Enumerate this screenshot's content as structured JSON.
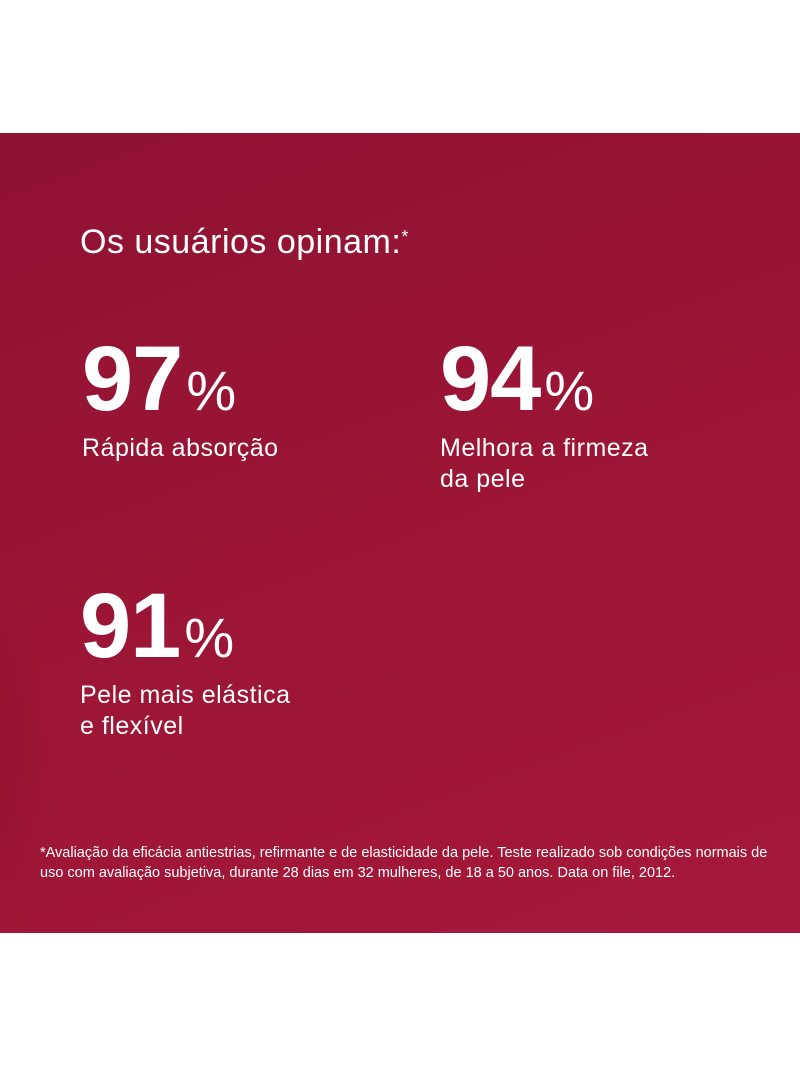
{
  "heading": {
    "text": "Os usuários opinam:",
    "asterisk": "*"
  },
  "stats": [
    {
      "number": "97",
      "unit": "%",
      "label": "Rápida absorção"
    },
    {
      "number": "94",
      "unit": "%",
      "label": "Melhora a firmeza\nda pele"
    },
    {
      "number": "91",
      "unit": "%",
      "label": "Pele mais elástica\ne flexível"
    }
  ],
  "footnote": "*Avaliação da eficácia antiestrias, refirmante e de elasticidade da pele. Teste realizado sob condições normais de uso com avaliação subjetiva, durante 28 dias em 32 mulheres, de 18 a 50 anos. Data on file, 2012.",
  "colors": {
    "panel_background": "#9b1535",
    "text": "#ffffff",
    "page_background": "#ffffff"
  }
}
